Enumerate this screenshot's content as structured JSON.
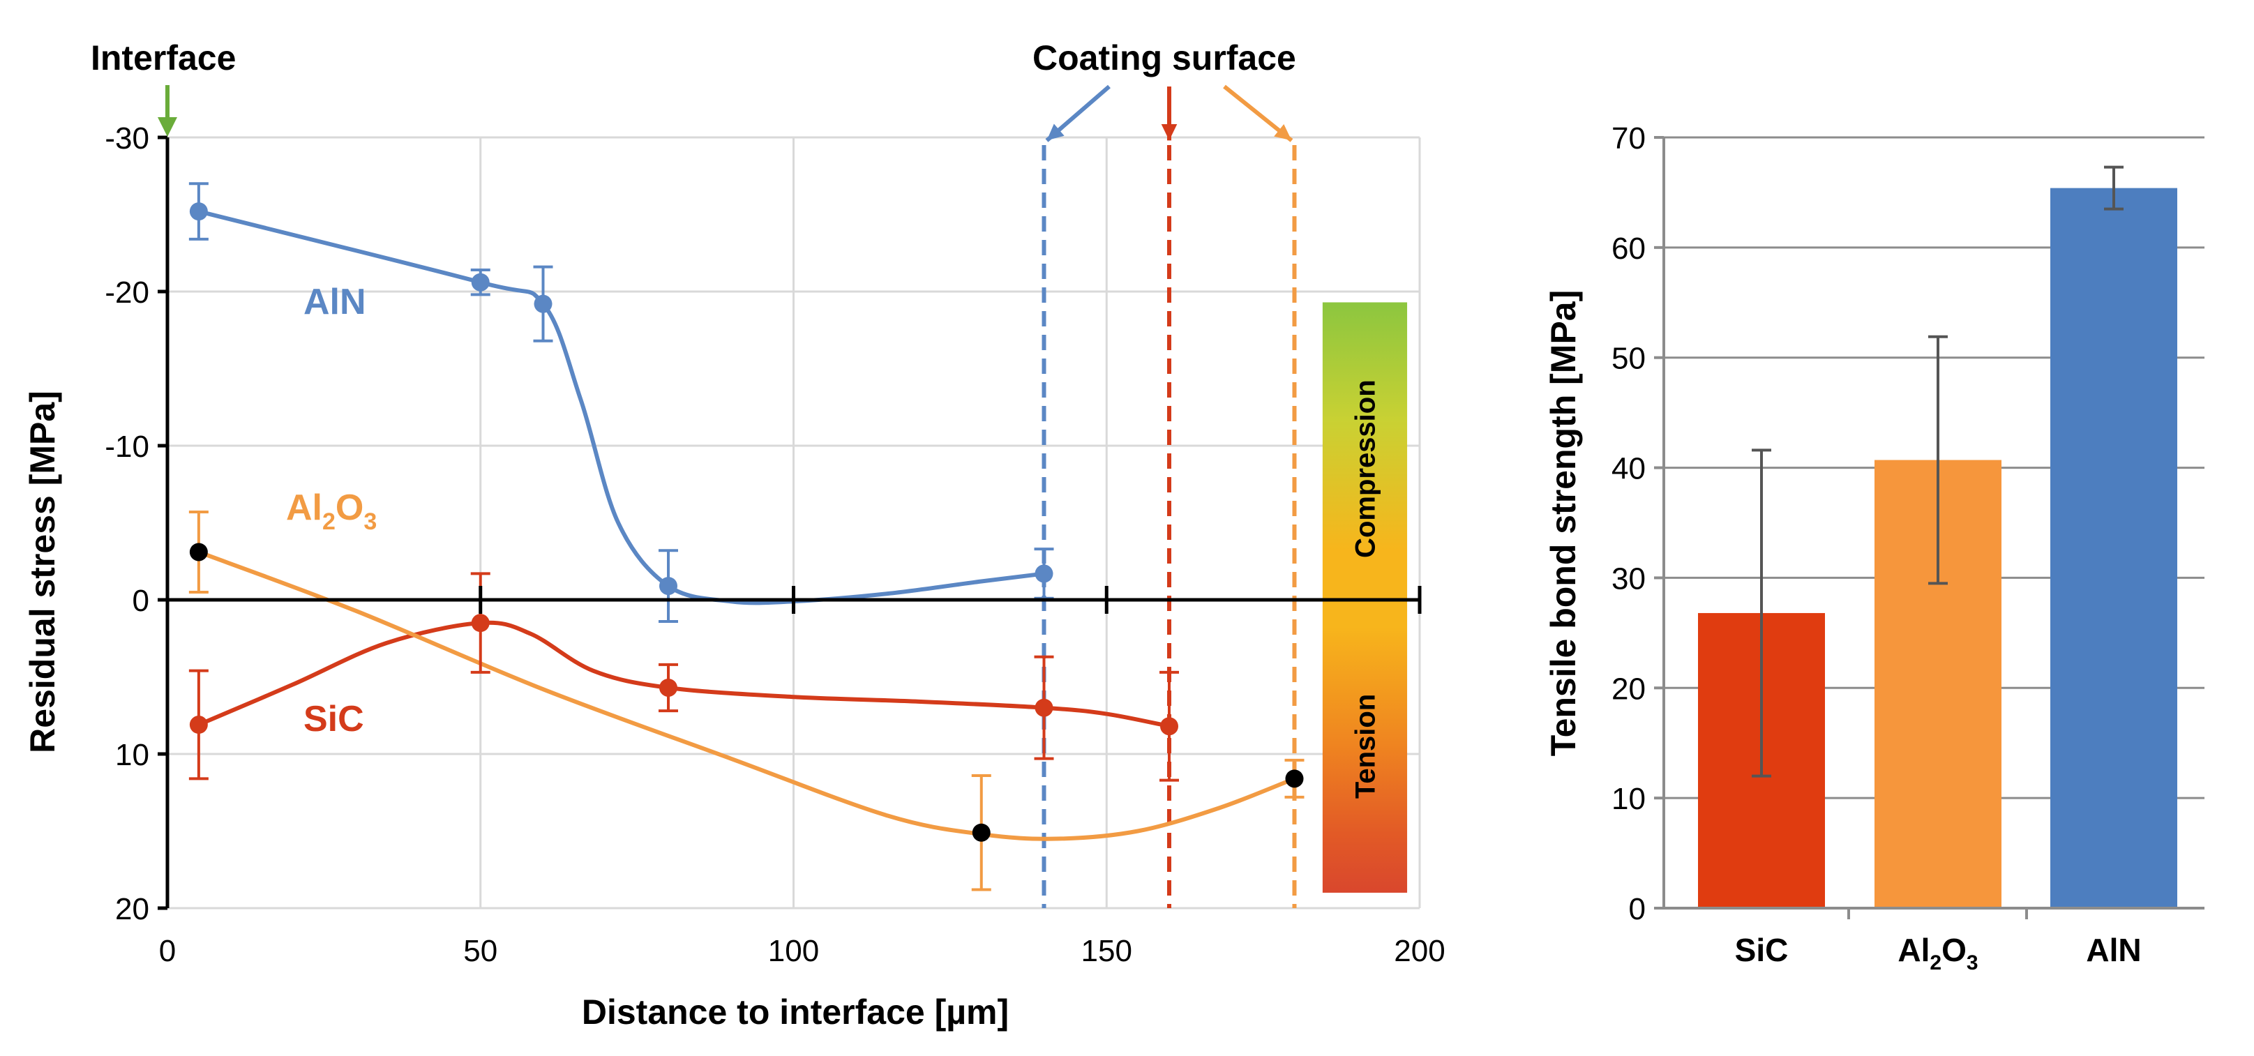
{
  "chart_data": [
    {
      "type": "line",
      "title": "",
      "xlabel": "Distance to interface [µm]",
      "ylabel": "Residual stress [MPa]",
      "xlim": [
        0,
        200
      ],
      "ylim": [
        20,
        -30
      ],
      "y_inverted": true,
      "x_ticks": [
        "0",
        "50",
        "100",
        "150",
        "200"
      ],
      "y_ticks": [
        "-30",
        "-20",
        "-10",
        "0",
        "10",
        "20"
      ],
      "series": [
        {
          "name": "AlN",
          "color": "#5b87c4",
          "points": [
            {
              "x": 5,
              "y": -25.2,
              "err": 1.8
            },
            {
              "x": 50,
              "y": -20.6,
              "err": 0.8
            },
            {
              "x": 60,
              "y": -19.2,
              "err": 2.4
            },
            {
              "x": 80,
              "y": -0.9,
              "err": 2.3
            },
            {
              "x": 140,
              "y": -1.7,
              "err": 1.6
            }
          ],
          "curve": [
            [
              5,
              -25.2
            ],
            [
              50,
              -20.6
            ],
            [
              60,
              -19.2
            ],
            [
              66,
              -13
            ],
            [
              72,
              -5
            ],
            [
              80,
              -0.9
            ],
            [
              90,
              0.1
            ],
            [
              100,
              0.1
            ],
            [
              115,
              -0.4
            ],
            [
              130,
              -1.2
            ],
            [
              140,
              -1.7
            ]
          ]
        },
        {
          "name": "SiC",
          "color": "#d43b1a",
          "points": [
            {
              "x": 5,
              "y": 8.1,
              "err": 3.5
            },
            {
              "x": 50,
              "y": 1.5,
              "err": 3.2
            },
            {
              "x": 80,
              "y": 5.7,
              "err": 1.5
            },
            {
              "x": 140,
              "y": 7.0,
              "err": 3.3
            },
            {
              "x": 160,
              "y": 8.2,
              "err": 3.5
            }
          ],
          "curve": [
            [
              5,
              8.1
            ],
            [
              20,
              5.5
            ],
            [
              35,
              2.8
            ],
            [
              50,
              1.5
            ],
            [
              58,
              2.2
            ],
            [
              68,
              4.6
            ],
            [
              80,
              5.7
            ],
            [
              100,
              6.3
            ],
            [
              120,
              6.6
            ],
            [
              140,
              7.0
            ],
            [
              150,
              7.4
            ],
            [
              160,
              8.2
            ]
          ]
        },
        {
          "name": "Al2O3",
          "color": "#f29b43",
          "points": [
            {
              "x": 5,
              "y": -3.1,
              "err": 2.6
            },
            {
              "x": 130,
              "y": 15.1,
              "err": 3.7
            },
            {
              "x": 180,
              "y": 11.6,
              "err": 1.2
            }
          ],
          "curve": [
            [
              5,
              -3.1
            ],
            [
              30,
              0.7
            ],
            [
              60,
              5.8
            ],
            [
              90,
              10.3
            ],
            [
              115,
              14.0
            ],
            [
              130,
              15.2
            ],
            [
              142,
              15.5
            ],
            [
              155,
              15.0
            ],
            [
              168,
              13.5
            ],
            [
              180,
              11.6
            ]
          ]
        }
      ],
      "coating_surface_x": [
        140,
        160,
        180
      ],
      "legend_scale": {
        "upper": "Compression",
        "lower": "Tension"
      },
      "annotations": {
        "interface": "Interface",
        "coating_surface": "Coating surface",
        "label_aln": "AlN",
        "label_sic": "SiC",
        "label_al2o3_base": "Al",
        "label_al2o3_sub1": "2",
        "label_al2o3_mid": "O",
        "label_al2o3_sub2": "3"
      }
    },
    {
      "type": "bar",
      "title": "",
      "xlabel": "",
      "ylabel": "Tensile bond strength [MPa]",
      "ylim": [
        0,
        70
      ],
      "y_ticks": [
        "0",
        "10",
        "20",
        "30",
        "40",
        "50",
        "60",
        "70"
      ],
      "categories": [
        "SiC",
        "Al2O3",
        "AlN"
      ],
      "values": [
        26.8,
        40.7,
        65.4
      ],
      "errors": [
        14.8,
        11.2,
        1.9
      ],
      "colors": [
        "#e03c10",
        "#f6963c",
        "#4d7ebf"
      ],
      "category_labels": {
        "sic": "SiC",
        "al2o3_base": "Al",
        "al2o3_sub1": "2",
        "al2o3_mid": "O",
        "al2o3_sub2": "3",
        "aln": "AlN"
      }
    }
  ]
}
